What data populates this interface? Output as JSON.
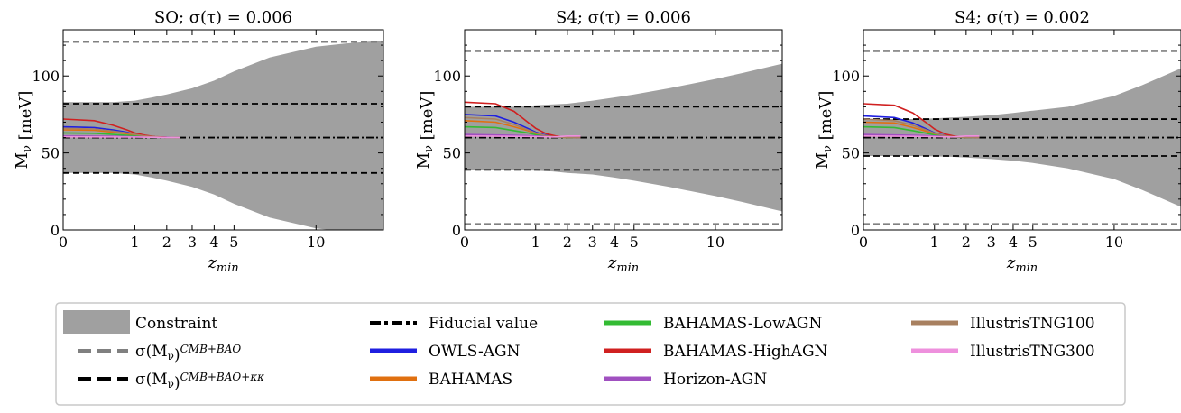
{
  "chart_data": [
    {
      "type": "area",
      "title": "SO; σ(τ) = 0.006",
      "xlabel": "z_min",
      "ylabel": "M_ν [meV]",
      "xlim": [
        0,
        15
      ],
      "ylim": [
        0,
        130
      ],
      "x_ticks": [
        0,
        1,
        2,
        3,
        4,
        5,
        10
      ],
      "x_tick_labels": [
        "0",
        "1",
        "2",
        "3",
        "4",
        "5",
        "10"
      ],
      "y_ticks": [
        0,
        50,
        100
      ],
      "y_tick_labels": [
        "0",
        "50",
        "100"
      ],
      "fiducial": 60,
      "cmb_bao": [
        122,
        122
      ],
      "cmb_bao_kk": [
        37,
        82
      ],
      "constraint": {
        "x": [
          0,
          0.5,
          1,
          1.5,
          2,
          3,
          4,
          5,
          7,
          10,
          12,
          15
        ],
        "upper": [
          83,
          83,
          84,
          86,
          88,
          92,
          97,
          103,
          112,
          119,
          121,
          123
        ],
        "lower": [
          37,
          37,
          36,
          34,
          32,
          28,
          23,
          17,
          8,
          1,
          -1,
          -3
        ]
      },
      "series": [
        {
          "name": "OWLS-AGN",
          "color": "#1f1fe0",
          "x": [
            0,
            0.2,
            0.5,
            0.8,
            1.0,
            1.3,
            1.6,
            2.0,
            2.5
          ],
          "y": [
            67,
            66.5,
            65,
            63.5,
            62,
            61,
            60.5,
            60.2,
            60
          ]
        },
        {
          "name": "BAHAMAS",
          "color": "#e07010",
          "x": [
            0,
            0.2,
            0.5,
            0.8,
            1.0,
            1.3,
            1.6,
            2.0,
            2.5
          ],
          "y": [
            65,
            64.7,
            63.5,
            62.5,
            61.5,
            60.8,
            60.3,
            60.1,
            60
          ]
        },
        {
          "name": "BAHAMAS-LowAGN",
          "color": "#33bb33",
          "x": [
            0,
            0.2,
            0.5,
            0.8,
            1.0,
            1.3,
            1.6,
            2.0,
            2.5
          ],
          "y": [
            63,
            62.8,
            62,
            61.5,
            61,
            60.5,
            60.2,
            60.1,
            60
          ]
        },
        {
          "name": "BAHAMAS-HighAGN",
          "color": "#d02020",
          "x": [
            0,
            0.2,
            0.5,
            0.8,
            1.0,
            1.3,
            1.6,
            2.0,
            2.5
          ],
          "y": [
            72,
            71,
            68,
            65,
            63,
            61.5,
            60.6,
            60.2,
            60
          ]
        },
        {
          "name": "Horizon-AGN",
          "color": "#a050c0",
          "x": [
            0,
            0.5,
            1.0,
            1.5,
            2.0,
            2.5
          ],
          "y": [
            61,
            60.8,
            60.5,
            60.2,
            60.1,
            60
          ]
        },
        {
          "name": "IllustrisTNG100",
          "color": "#a88060",
          "x": [
            0,
            0.2,
            0.5,
            0.8,
            1.0,
            1.3,
            1.6,
            2.0,
            2.5
          ],
          "y": [
            66,
            65.6,
            64.2,
            63,
            62,
            61,
            60.5,
            60.1,
            60
          ]
        },
        {
          "name": "IllustrisTNG300",
          "color": "#ee90dd",
          "x": [
            0,
            0.5,
            1.0,
            1.5,
            2.0,
            2.5
          ],
          "y": [
            60.5,
            60.4,
            60.3,
            60.2,
            60.1,
            60
          ]
        }
      ]
    },
    {
      "type": "area",
      "title": "S4; σ(τ) = 0.006",
      "xlabel": "z_min",
      "ylabel": "M_ν [meV]",
      "xlim": [
        0,
        15
      ],
      "ylim": [
        0,
        130
      ],
      "x_ticks": [
        0,
        1,
        2,
        3,
        4,
        5,
        10
      ],
      "x_tick_labels": [
        "0",
        "1",
        "2",
        "3",
        "4",
        "5",
        "10"
      ],
      "y_ticks": [
        0,
        50,
        100
      ],
      "y_tick_labels": [
        "0",
        "50",
        "100"
      ],
      "fiducial": 60,
      "cmb_bao": [
        4,
        116
      ],
      "cmb_bao_kk": [
        39,
        80
      ],
      "constraint": {
        "x": [
          0,
          0.5,
          1,
          1.5,
          2,
          3,
          4,
          5,
          7,
          10,
          12,
          15
        ],
        "upper": [
          80,
          80,
          81,
          81.5,
          82,
          84,
          86,
          88,
          92,
          98,
          102,
          108
        ],
        "lower": [
          39,
          39,
          38.5,
          38,
          37,
          36,
          34,
          32,
          28,
          22,
          18,
          12
        ]
      },
      "series": [
        {
          "name": "OWLS-AGN",
          "color": "#1f1fe0",
          "x": [
            0,
            0.2,
            0.5,
            0.8,
            1.0,
            1.3,
            1.6,
            2.0,
            2.5
          ],
          "y": [
            75,
            74,
            70,
            66,
            63.5,
            61.5,
            60.6,
            60.2,
            60
          ]
        },
        {
          "name": "BAHAMAS",
          "color": "#e07010",
          "x": [
            0,
            0.2,
            0.5,
            0.8,
            1.0,
            1.3,
            1.6,
            2.0,
            2.5
          ],
          "y": [
            71,
            70,
            67,
            64.5,
            62.5,
            61,
            60.4,
            60.1,
            60
          ]
        },
        {
          "name": "BAHAMAS-LowAGN",
          "color": "#33bb33",
          "x": [
            0,
            0.2,
            0.5,
            0.8,
            1.0,
            1.3,
            1.6,
            2.0,
            2.5
          ],
          "y": [
            67,
            66.5,
            64.5,
            63,
            61.8,
            60.8,
            60.3,
            60.1,
            60
          ]
        },
        {
          "name": "BAHAMAS-HighAGN",
          "color": "#d02020",
          "x": [
            0,
            0.2,
            0.5,
            0.8,
            1.0,
            1.3,
            1.6,
            2.0,
            2.5
          ],
          "y": [
            83,
            82,
            77,
            70,
            66,
            62.5,
            61,
            60.3,
            60
          ]
        },
        {
          "name": "Horizon-AGN",
          "color": "#a050c0",
          "x": [
            0,
            0.5,
            1.0,
            1.5,
            2.0,
            2.5
          ],
          "y": [
            62,
            61.5,
            61,
            60.5,
            60.2,
            60
          ]
        },
        {
          "name": "IllustrisTNG100",
          "color": "#a88060",
          "x": [
            0,
            0.2,
            0.5,
            0.8,
            1.0,
            1.3,
            1.6,
            2.0,
            2.5
          ],
          "y": [
            73,
            72,
            68.5,
            65,
            63,
            61.2,
            60.5,
            60.1,
            60
          ]
        },
        {
          "name": "IllustrisTNG300",
          "color": "#ee90dd",
          "x": [
            0,
            0.5,
            1.0,
            1.5,
            2.0,
            2.5
          ],
          "y": [
            61,
            60.8,
            60.6,
            60.4,
            61,
            61
          ]
        }
      ]
    },
    {
      "type": "area",
      "title": "S4; σ(τ) = 0.002",
      "xlabel": "z_min",
      "ylabel": "M_ν [meV]",
      "xlim": [
        0,
        15
      ],
      "ylim": [
        0,
        130
      ],
      "x_ticks": [
        0,
        1,
        2,
        3,
        4,
        5,
        10
      ],
      "x_tick_labels": [
        "0",
        "1",
        "2",
        "3",
        "4",
        "5",
        "10"
      ],
      "y_ticks": [
        0,
        50,
        100
      ],
      "y_tick_labels": [
        "0",
        "50",
        "100"
      ],
      "fiducial": 60,
      "cmb_bao": [
        4,
        116
      ],
      "cmb_bao_kk": [
        48,
        72
      ],
      "constraint": {
        "x": [
          0,
          0.5,
          1,
          1.5,
          2,
          3,
          4,
          5,
          7,
          10,
          12,
          15
        ],
        "upper": [
          72,
          72,
          72.5,
          73,
          73.5,
          74.5,
          76,
          77.5,
          80,
          87,
          94,
          105
        ],
        "lower": [
          48,
          48,
          47.8,
          47.5,
          47,
          46,
          45,
          43.5,
          40,
          33,
          26,
          15
        ]
      },
      "series": [
        {
          "name": "OWLS-AGN",
          "color": "#1f1fe0",
          "x": [
            0,
            0.2,
            0.5,
            0.8,
            1.0,
            1.3,
            1.6,
            2.0,
            2.5
          ],
          "y": [
            74,
            73,
            69.5,
            65.5,
            63,
            61.3,
            60.5,
            60.1,
            60
          ]
        },
        {
          "name": "BAHAMAS",
          "color": "#e07010",
          "x": [
            0,
            0.2,
            0.5,
            0.8,
            1.0,
            1.3,
            1.6,
            2.0,
            2.5
          ],
          "y": [
            70,
            69.5,
            66.5,
            64,
            62.3,
            61,
            60.4,
            60.1,
            60
          ]
        },
        {
          "name": "BAHAMAS-LowAGN",
          "color": "#33bb33",
          "x": [
            0,
            0.2,
            0.5,
            0.8,
            1.0,
            1.3,
            1.6,
            2.0,
            2.5
          ],
          "y": [
            67,
            66.5,
            64.5,
            62.8,
            61.6,
            60.8,
            60.3,
            60.1,
            60
          ]
        },
        {
          "name": "BAHAMAS-HighAGN",
          "color": "#d02020",
          "x": [
            0,
            0.2,
            0.5,
            0.8,
            1.0,
            1.3,
            1.6,
            2.0,
            2.5
          ],
          "y": [
            82,
            81,
            76,
            69.5,
            65.5,
            62.3,
            60.9,
            60.3,
            60
          ]
        },
        {
          "name": "Horizon-AGN",
          "color": "#a050c0",
          "x": [
            0,
            0.5,
            1.0,
            1.5,
            2.0,
            2.5
          ],
          "y": [
            62,
            61.5,
            61,
            60.5,
            60.2,
            60
          ]
        },
        {
          "name": "IllustrisTNG100",
          "color": "#a88060",
          "x": [
            0,
            0.2,
            0.5,
            0.8,
            1.0,
            1.3,
            1.6,
            2.0,
            2.5
          ],
          "y": [
            72,
            71,
            68,
            64.8,
            62.8,
            61.2,
            60.5,
            60.1,
            60
          ]
        },
        {
          "name": "IllustrisTNG300",
          "color": "#ee90dd",
          "x": [
            0,
            0.5,
            1.0,
            1.5,
            2.0,
            2.5
          ],
          "y": [
            61,
            60.8,
            60.6,
            60.4,
            61,
            61
          ]
        }
      ]
    }
  ],
  "legend": {
    "items": [
      {
        "label": "Constraint",
        "kind": "patch",
        "color": "#a0a0a0"
      },
      {
        "label": "σ(M_ν)^{CMB+BAO}",
        "kind": "dashed",
        "color": "#808080"
      },
      {
        "label": "σ(M_ν)^{CMB+BAO+κκ}",
        "kind": "dashed",
        "color": "#000000"
      },
      {
        "label": "Fiducial value",
        "kind": "dashdot",
        "color": "#000000"
      },
      {
        "label": "OWLS-AGN",
        "kind": "line",
        "color": "#1f1fe0"
      },
      {
        "label": "BAHAMAS",
        "kind": "line",
        "color": "#e07010"
      },
      {
        "label": "BAHAMAS-LowAGN",
        "kind": "line",
        "color": "#33bb33"
      },
      {
        "label": "BAHAMAS-HighAGN",
        "kind": "line",
        "color": "#d02020"
      },
      {
        "label": "Horizon-AGN",
        "kind": "line",
        "color": "#a050c0"
      },
      {
        "label": "IllustrisTNG100",
        "kind": "line",
        "color": "#a88060"
      },
      {
        "label": "IllustrisTNG300",
        "kind": "line",
        "color": "#ee90dd"
      }
    ]
  }
}
